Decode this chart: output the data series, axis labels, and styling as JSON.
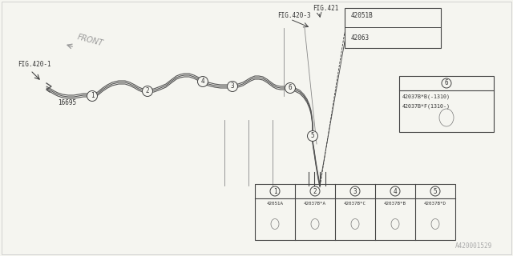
{
  "bg_color": "#f5f5f0",
  "line_color": "#444444",
  "text_color": "#333333",
  "gray_text": "#999999",
  "fig_size": [
    6.4,
    3.2
  ],
  "dpi": 100,
  "labels": {
    "fig421": "FIG.421",
    "fig420_3": "FIG.420-3",
    "fig420_1": "FIG.420-1",
    "front": "FRONT",
    "part_16695": "16695",
    "part_42051B": "42051B",
    "part_42063": "42063"
  },
  "callout_table": {
    "headers": [
      "1",
      "2",
      "3",
      "4",
      "5"
    ],
    "part_numbers": [
      "42051A",
      "42037B*A",
      "42037B*C",
      "42037B*B",
      "42037B*D"
    ]
  },
  "callout_box6": {
    "header": "6",
    "part_numbers": [
      "42037B*B(-1310)",
      "42037B*F(1310-)"
    ]
  },
  "watermark": "A420001529",
  "pipe_color": "#555555",
  "pipe_lw": 0.8,
  "pipe_offsets": [
    -2.5,
    0,
    2.5
  ]
}
